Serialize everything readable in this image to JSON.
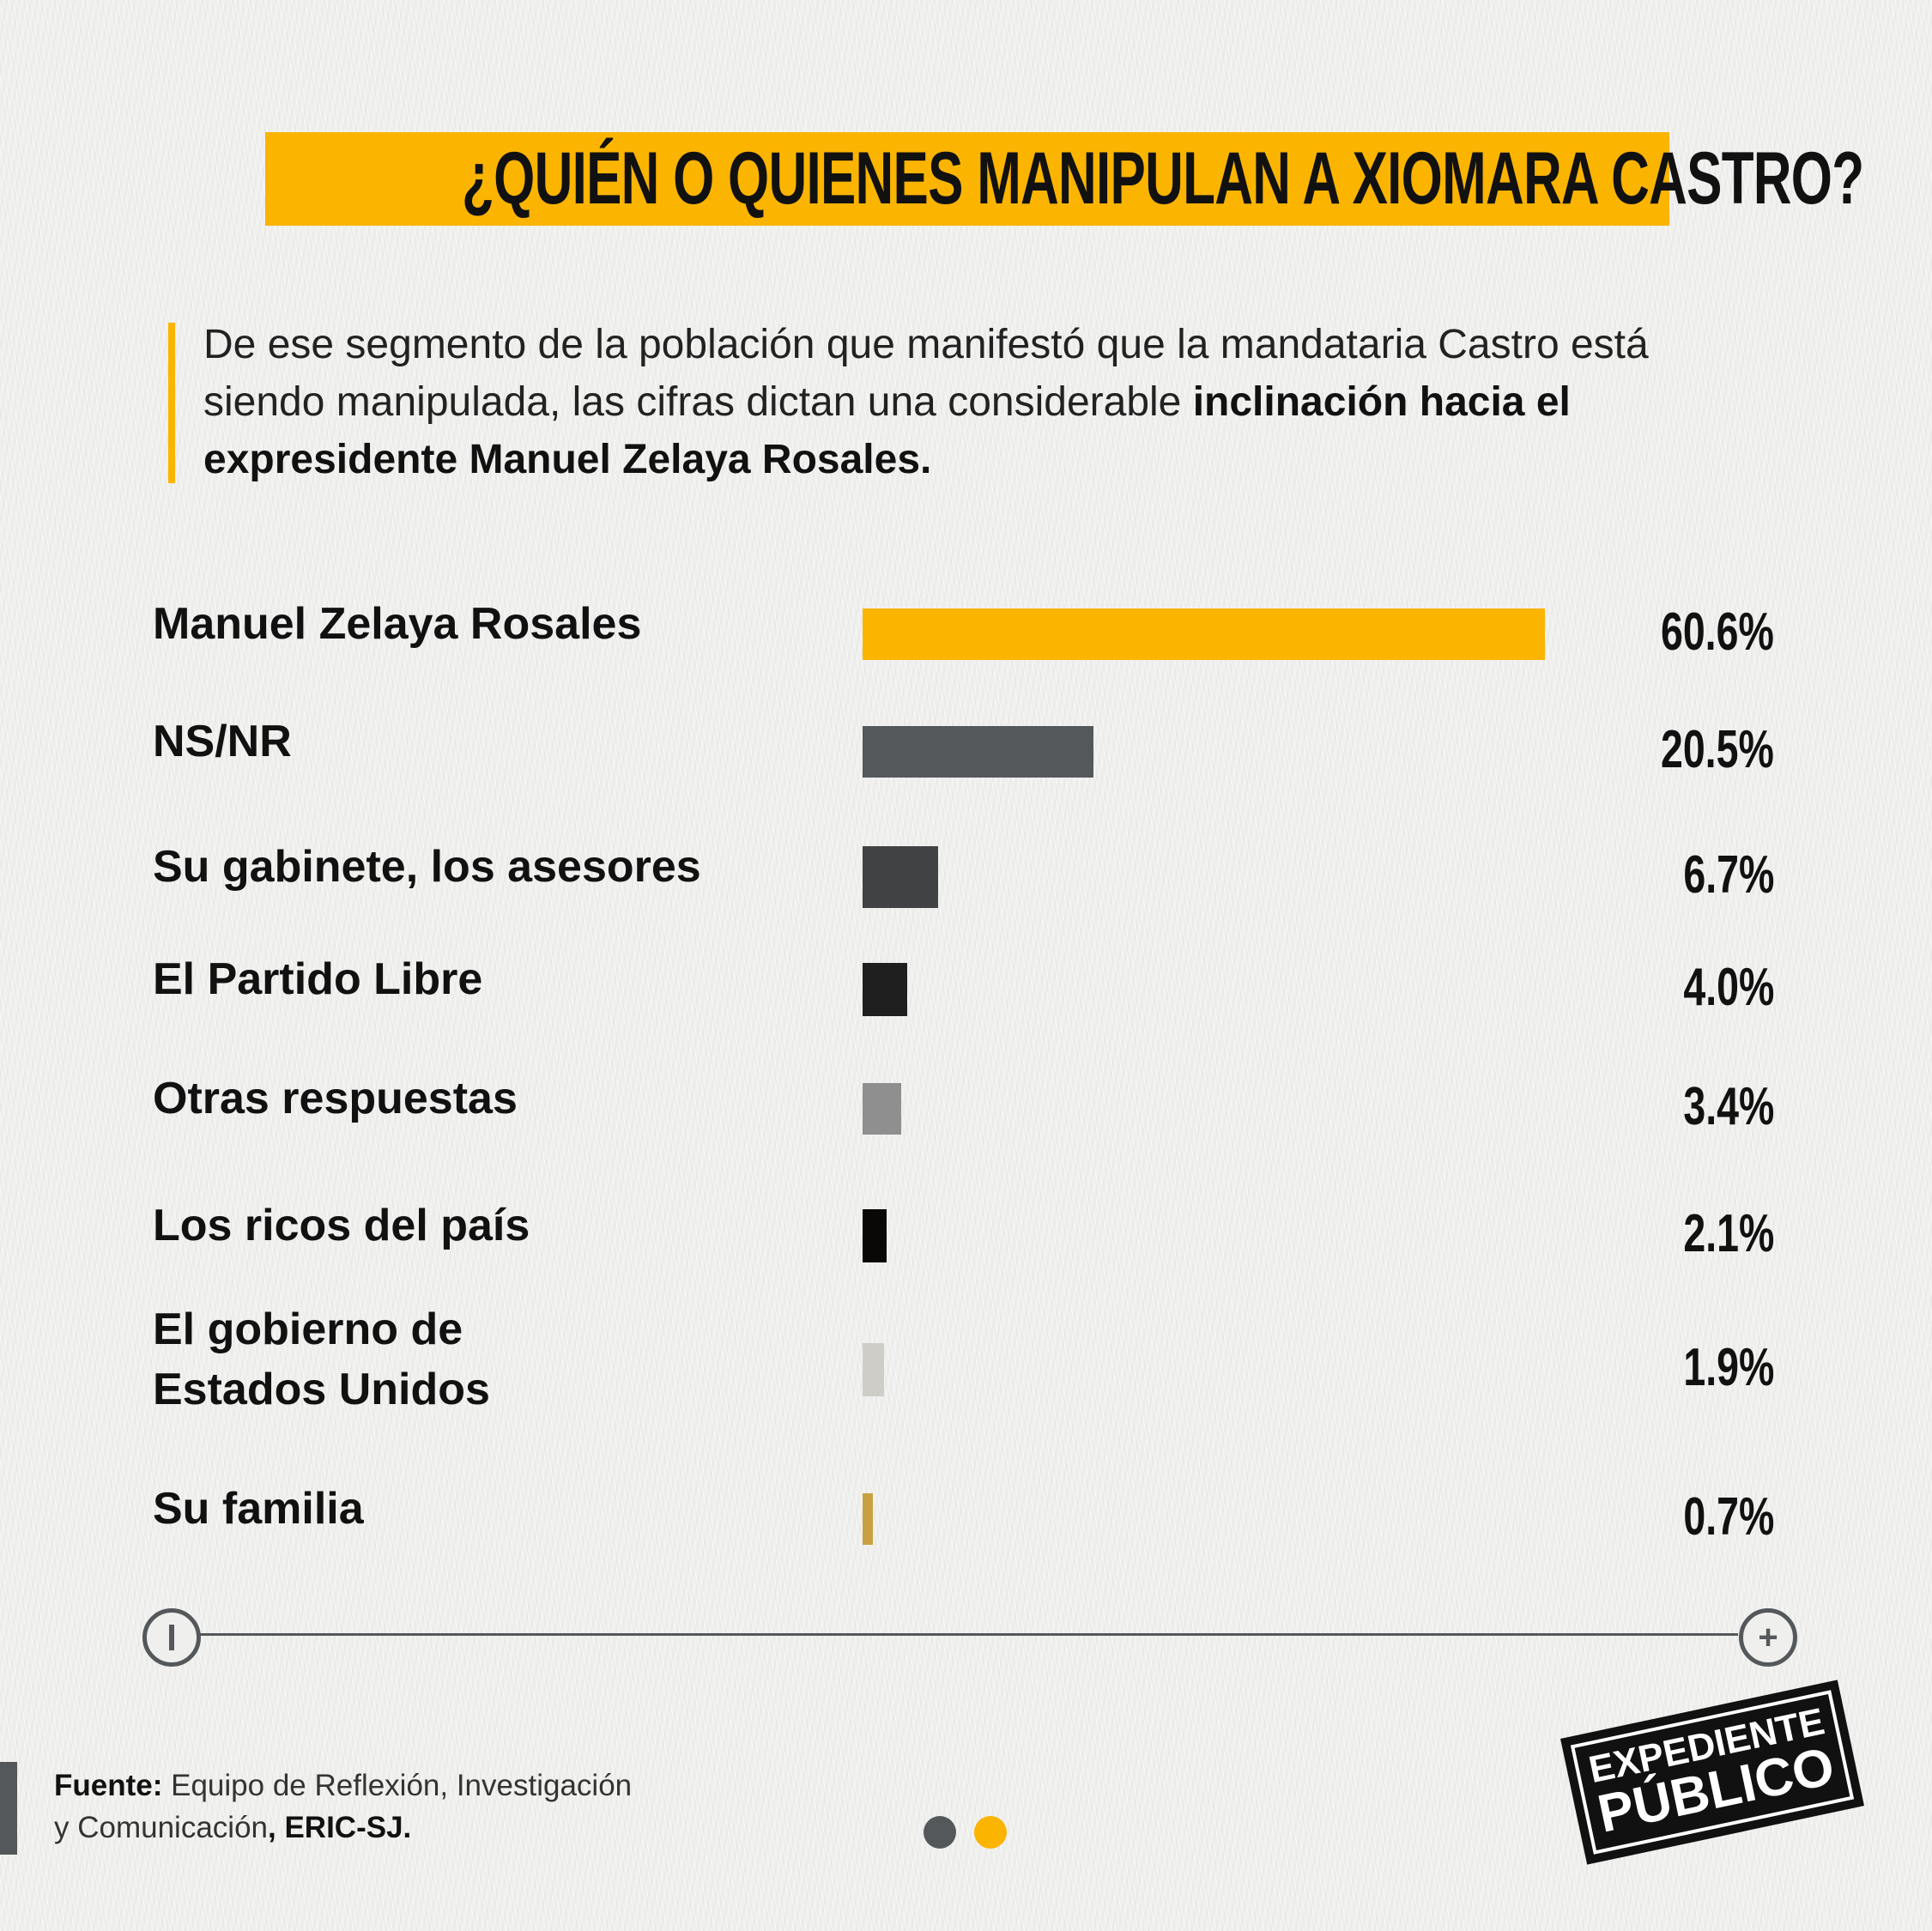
{
  "title": "¿QUIÉN O QUIENES MANIPULAN A XIOMARA CASTRO?",
  "intro": {
    "normal": "De ese segmento de la población que manifestó que la mandataria Castro está siendo manipulada, las cifras dictan una considerable ",
    "bold": "inclinación hacia el expresidente Manuel Zelaya Rosales."
  },
  "chart_data": {
    "type": "bar",
    "orientation": "horizontal",
    "title": "¿QUIÉN O QUIENES MANIPULAN A XIOMARA CASTRO?",
    "categories": [
      "Manuel Zelaya Rosales",
      "NS/NR",
      "Su gabinete, los asesores",
      "El Partido Libre",
      "Otras respuestas",
      "Los ricos del país",
      "El gobierno de Estados Unidos",
      "Su familia"
    ],
    "values": [
      60.6,
      20.5,
      6.7,
      4.0,
      3.4,
      2.1,
      1.9,
      0.7
    ],
    "value_labels": [
      "60.6%",
      "20.5%",
      "6.7%",
      "4.0%",
      "3.4%",
      "2.1%",
      "1.9%",
      "0.7%"
    ],
    "colors": [
      "#FBB400",
      "#54585A",
      "#404244",
      "#1f1f1f",
      "#8f8f8f",
      "#0a0707",
      "#cfcdc8",
      "#c9a040"
    ],
    "unit": "%",
    "grid": false
  },
  "label_lines": [
    [
      "Manuel Zelaya Rosales"
    ],
    [
      "NS/NR"
    ],
    [
      "Su gabinete, los asesores"
    ],
    [
      "El Partido Libre"
    ],
    [
      "Otras respuestas"
    ],
    [
      "Los ricos del país"
    ],
    [
      "El gobierno de",
      "Estados Unidos"
    ],
    [
      "Su familia"
    ]
  ],
  "slider": {
    "minus": "−",
    "plus": "+"
  },
  "source": {
    "label": "Fuente:",
    "text1": " Equipo de Reflexión, Investigación",
    "text2": "y Comunicación",
    "bold2": ", ERIC-SJ."
  },
  "pagination": {
    "count": 2,
    "active": 1,
    "colors": [
      "#54585A",
      "#FBB400"
    ]
  },
  "logo": {
    "line1": "EXPEDIENTE",
    "line2": "PÚBLICO"
  }
}
